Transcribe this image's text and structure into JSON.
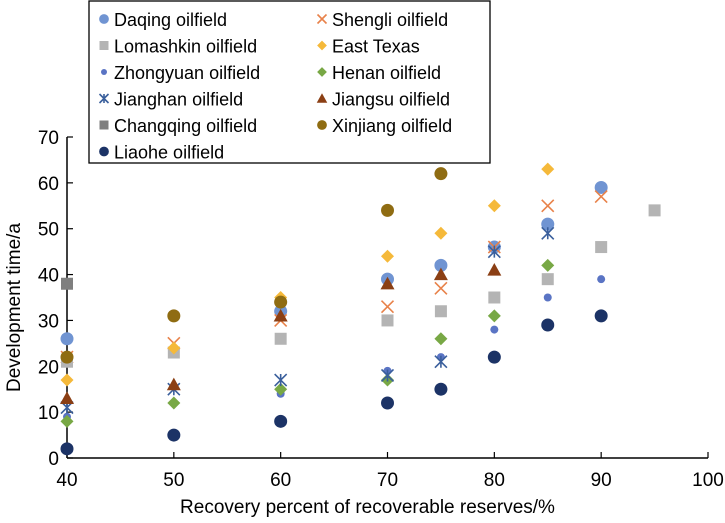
{
  "chart_data": {
    "type": "scatter",
    "title": "",
    "xlabel": "Recovery percent of recoverable reserves/%",
    "ylabel": "Development time/a",
    "xlim": [
      40,
      100
    ],
    "ylim": [
      0,
      70
    ],
    "xticks": [
      40,
      50,
      60,
      70,
      80,
      90,
      100
    ],
    "yticks": [
      0,
      10,
      20,
      30,
      40,
      50,
      60,
      70
    ],
    "grid": false,
    "legend_position": "top",
    "series": [
      {
        "name": "Daqing oilfield",
        "marker": "circle-large",
        "color": "#7094d2",
        "points": [
          [
            40,
            26
          ],
          [
            60,
            32
          ],
          [
            70,
            39
          ],
          [
            75,
            42
          ],
          [
            80,
            46
          ],
          [
            85,
            51
          ],
          [
            90,
            59
          ]
        ]
      },
      {
        "name": "Shengli oilfield",
        "marker": "x",
        "color": "#e8824a",
        "points": [
          [
            40,
            22
          ],
          [
            50,
            25
          ],
          [
            60,
            30
          ],
          [
            70,
            33
          ],
          [
            75,
            37
          ],
          [
            80,
            46
          ],
          [
            85,
            55
          ],
          [
            90,
            57
          ]
        ]
      },
      {
        "name": "Lomashkin oilfield",
        "marker": "square",
        "color": "#b4b4b4",
        "points": [
          [
            40,
            21
          ],
          [
            50,
            23
          ],
          [
            60,
            26
          ],
          [
            70,
            30
          ],
          [
            75,
            32
          ],
          [
            80,
            35
          ],
          [
            85,
            39
          ],
          [
            90,
            46
          ],
          [
            95,
            54
          ]
        ]
      },
      {
        "name": "East Texas",
        "marker": "diamond",
        "color": "#f5b93a",
        "points": [
          [
            40,
            17
          ],
          [
            50,
            24
          ],
          [
            60,
            35
          ],
          [
            70,
            44
          ],
          [
            75,
            49
          ],
          [
            80,
            55
          ],
          [
            85,
            63
          ]
        ]
      },
      {
        "name": "Zhongyuan oilfield",
        "marker": "circle-small",
        "color": "#5a74c4",
        "points": [
          [
            40,
            9
          ],
          [
            60,
            14
          ],
          [
            70,
            19
          ],
          [
            75,
            22
          ],
          [
            80,
            28
          ],
          [
            85,
            35
          ],
          [
            90,
            39
          ]
        ]
      },
      {
        "name": "Henan oilfield",
        "marker": "diamond",
        "color": "#78a845",
        "points": [
          [
            40,
            8
          ],
          [
            50,
            12
          ],
          [
            60,
            15
          ],
          [
            70,
            17
          ],
          [
            75,
            26
          ],
          [
            80,
            31
          ],
          [
            85,
            42
          ]
        ]
      },
      {
        "name": "Jianghan oilfield",
        "marker": "asterisk",
        "color": "#3a5f9c",
        "points": [
          [
            40,
            11
          ],
          [
            50,
            15
          ],
          [
            60,
            17
          ],
          [
            70,
            18
          ],
          [
            75,
            21
          ],
          [
            80,
            45
          ],
          [
            85,
            49
          ]
        ]
      },
      {
        "name": "Jiangsu oilfield",
        "marker": "triangle",
        "color": "#8b3f14",
        "points": [
          [
            40,
            13
          ],
          [
            50,
            16
          ],
          [
            60,
            31
          ],
          [
            70,
            38
          ],
          [
            75,
            40
          ],
          [
            80,
            41
          ]
        ]
      },
      {
        "name": "Changqing oilfield",
        "marker": "square",
        "color": "#7f7f7f",
        "points": [
          [
            40,
            38
          ]
        ]
      },
      {
        "name": "Xinjiang oilfield",
        "marker": "circle-large",
        "color": "#8f6c12",
        "points": [
          [
            40,
            22
          ],
          [
            50,
            31
          ],
          [
            60,
            34
          ],
          [
            70,
            54
          ],
          [
            75,
            62
          ]
        ]
      },
      {
        "name": "Liaohe oilfield",
        "marker": "circle-large",
        "color": "#1c3366",
        "points": [
          [
            40,
            2
          ],
          [
            50,
            5
          ],
          [
            60,
            8
          ],
          [
            70,
            12
          ],
          [
            75,
            15
          ],
          [
            80,
            22
          ],
          [
            85,
            29
          ],
          [
            90,
            31
          ]
        ]
      }
    ]
  }
}
